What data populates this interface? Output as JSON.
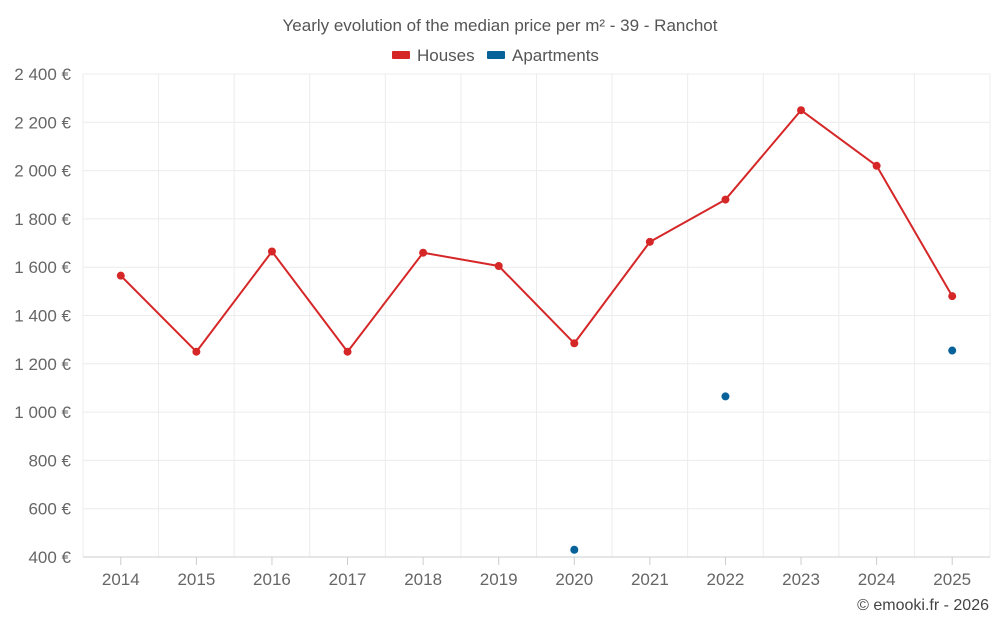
{
  "chart_data": {
    "type": "line",
    "title": "Yearly evolution of the median price per m² - 39 - Ranchot",
    "categories": [
      "2014",
      "2015",
      "2016",
      "2017",
      "2018",
      "2019",
      "2020",
      "2021",
      "2022",
      "2023",
      "2024",
      "2025"
    ],
    "ylim": [
      400,
      2400
    ],
    "yticks": [
      400,
      600,
      800,
      1000,
      1200,
      1400,
      1600,
      1800,
      2000,
      2200,
      2400
    ],
    "ytick_labels": [
      "400 €",
      "600 €",
      "800 €",
      "1 000 €",
      "1 200 €",
      "1 400 €",
      "1 600 €",
      "1 800 €",
      "2 000 €",
      "2 200 €",
      "2 400 €"
    ],
    "grid": true,
    "legend_position": "top-center",
    "series": [
      {
        "name": "Houses",
        "color": "#d62728",
        "values": [
          1565,
          1250,
          1665,
          1250,
          1660,
          1605,
          1285,
          1705,
          1880,
          2250,
          2020,
          1480
        ]
      },
      {
        "name": "Apartments",
        "color": "#08629a",
        "values": [
          null,
          null,
          null,
          null,
          null,
          null,
          430,
          null,
          1065,
          null,
          null,
          1255
        ]
      }
    ]
  },
  "credit": "© emooki.fr - 2026"
}
